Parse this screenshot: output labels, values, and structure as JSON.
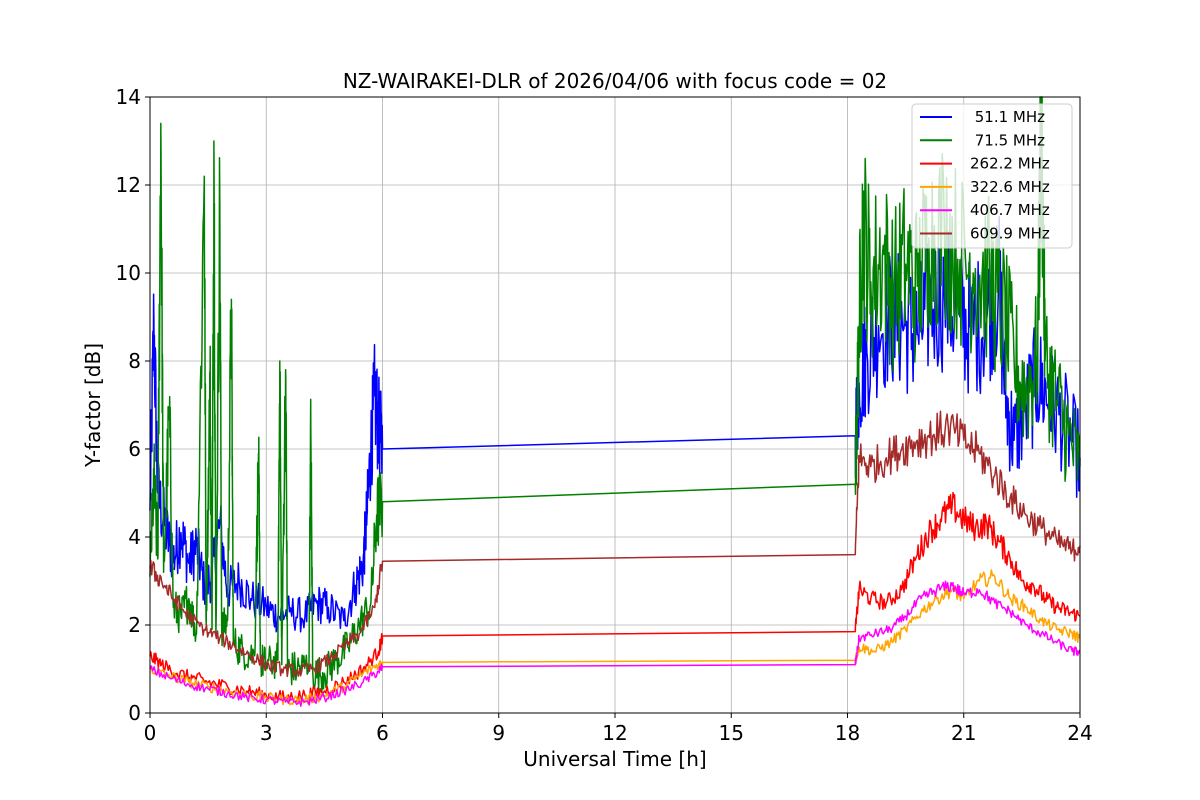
{
  "chart_data": {
    "type": "line",
    "title": "NZ-WAIRAKEI-DLR of 2026/04/06 with focus code = 02",
    "xlabel": "Universal Time [h]",
    "ylabel": "Y-factor [dB]",
    "xlim": [
      0,
      24
    ],
    "ylim": [
      0,
      14
    ],
    "xticks": [
      0,
      3,
      6,
      9,
      12,
      15,
      18,
      21,
      24
    ],
    "yticks": [
      0,
      2,
      4,
      6,
      8,
      10,
      12,
      14
    ],
    "grid": true,
    "legend_position": "top-right",
    "data_gap": [
      6.0,
      18.2
    ],
    "series": [
      {
        "name": " 51.1 MHz",
        "color": "#0000ff",
        "points": [
          [
            0.0,
            4.6
          ],
          [
            0.1,
            8.9
          ],
          [
            0.2,
            5.0
          ],
          [
            0.4,
            4.2
          ],
          [
            0.6,
            3.5
          ],
          [
            0.8,
            4.1
          ],
          [
            1.0,
            3.4
          ],
          [
            1.2,
            3.8
          ],
          [
            1.4,
            2.9
          ],
          [
            1.6,
            3.1
          ],
          [
            1.8,
            4.3
          ],
          [
            2.0,
            2.8
          ],
          [
            2.3,
            3.0
          ],
          [
            2.6,
            2.6
          ],
          [
            3.0,
            2.4
          ],
          [
            3.3,
            2.2
          ],
          [
            3.6,
            2.3
          ],
          [
            4.0,
            2.2
          ],
          [
            4.3,
            2.5
          ],
          [
            4.6,
            2.4
          ],
          [
            5.0,
            2.1
          ],
          [
            5.3,
            2.9
          ],
          [
            5.5,
            3.4
          ],
          [
            5.6,
            4.5
          ],
          [
            5.7,
            6.0
          ],
          [
            5.8,
            7.2
          ],
          [
            5.9,
            6.5
          ],
          [
            6.0,
            6.0
          ],
          [
            18.2,
            6.3
          ],
          [
            18.3,
            7.5
          ],
          [
            18.5,
            8.2
          ],
          [
            18.8,
            8.8
          ],
          [
            19.2,
            9.0
          ],
          [
            19.5,
            8.8
          ],
          [
            19.8,
            8.6
          ],
          [
            20.1,
            9.2
          ],
          [
            20.5,
            9.5
          ],
          [
            20.9,
            9.0
          ],
          [
            21.2,
            8.7
          ],
          [
            21.6,
            9.0
          ],
          [
            21.9,
            9.8
          ],
          [
            22.1,
            7.0
          ],
          [
            22.3,
            6.2
          ],
          [
            22.6,
            6.9
          ],
          [
            22.9,
            7.6
          ],
          [
            23.2,
            7.1
          ],
          [
            23.6,
            6.6
          ],
          [
            24.0,
            5.8
          ]
        ]
      },
      {
        "name": " 71.5 MHz",
        "color": "#008000",
        "points": [
          [
            0.0,
            3.1
          ],
          [
            0.1,
            5.3
          ],
          [
            0.2,
            3.5
          ],
          [
            0.28,
            13.4
          ],
          [
            0.35,
            3.2
          ],
          [
            0.5,
            6.8
          ],
          [
            0.6,
            2.4
          ],
          [
            0.8,
            2.2
          ],
          [
            1.0,
            2.6
          ],
          [
            1.2,
            1.8
          ],
          [
            1.4,
            12.2
          ],
          [
            1.45,
            2.0
          ],
          [
            1.55,
            7.6
          ],
          [
            1.6,
            1.9
          ],
          [
            1.65,
            13.0
          ],
          [
            1.7,
            1.8
          ],
          [
            1.8,
            11.6
          ],
          [
            1.85,
            1.9
          ],
          [
            2.0,
            2.1
          ],
          [
            2.1,
            9.4
          ],
          [
            2.15,
            1.6
          ],
          [
            2.4,
            1.4
          ],
          [
            2.7,
            1.3
          ],
          [
            2.8,
            5.9
          ],
          [
            2.85,
            1.2
          ],
          [
            3.0,
            1.1
          ],
          [
            3.3,
            1.2
          ],
          [
            3.35,
            8.0
          ],
          [
            3.4,
            1.1
          ],
          [
            3.5,
            7.8
          ],
          [
            3.55,
            1.0
          ],
          [
            3.8,
            1.0
          ],
          [
            4.1,
            1.1
          ],
          [
            4.15,
            6.5
          ],
          [
            4.2,
            0.9
          ],
          [
            4.5,
            0.9
          ],
          [
            4.8,
            1.2
          ],
          [
            5.1,
            1.5
          ],
          [
            5.4,
            2.0
          ],
          [
            5.7,
            2.5
          ],
          [
            5.85,
            4.5
          ],
          [
            6.0,
            4.8
          ],
          [
            18.2,
            5.2
          ],
          [
            18.3,
            8.8
          ],
          [
            18.4,
            11.2
          ],
          [
            18.6,
            9.8
          ],
          [
            18.9,
            10.4
          ],
          [
            19.2,
            9.6
          ],
          [
            19.5,
            10.2
          ],
          [
            19.8,
            9.7
          ],
          [
            20.1,
            10.8
          ],
          [
            20.5,
            11.0
          ],
          [
            20.9,
            10.3
          ],
          [
            21.3,
            10.1
          ],
          [
            21.7,
            9.8
          ],
          [
            22.0,
            9.1
          ],
          [
            22.3,
            8.0
          ],
          [
            22.6,
            7.3
          ],
          [
            22.9,
            8.1
          ],
          [
            23.0,
            13.8
          ],
          [
            23.1,
            8.0
          ],
          [
            23.4,
            7.1
          ],
          [
            23.7,
            6.3
          ],
          [
            24.0,
            5.6
          ]
        ]
      },
      {
        "name": "262.2 MHz",
        "color": "#ff0000",
        "points": [
          [
            0.0,
            1.3
          ],
          [
            0.3,
            1.1
          ],
          [
            0.7,
            0.9
          ],
          [
            1.1,
            0.8
          ],
          [
            1.5,
            0.7
          ],
          [
            2.0,
            0.6
          ],
          [
            2.5,
            0.5
          ],
          [
            3.0,
            0.4
          ],
          [
            3.5,
            0.35
          ],
          [
            4.0,
            0.4
          ],
          [
            4.5,
            0.5
          ],
          [
            5.0,
            0.7
          ],
          [
            5.5,
            1.0
          ],
          [
            5.9,
            1.4
          ],
          [
            6.0,
            1.75
          ],
          [
            18.2,
            1.85
          ],
          [
            18.3,
            2.8
          ],
          [
            18.6,
            2.6
          ],
          [
            19.0,
            2.5
          ],
          [
            19.4,
            2.8
          ],
          [
            19.8,
            3.6
          ],
          [
            20.1,
            4.1
          ],
          [
            20.4,
            4.4
          ],
          [
            20.7,
            4.7
          ],
          [
            21.0,
            4.4
          ],
          [
            21.3,
            4.2
          ],
          [
            21.6,
            4.3
          ],
          [
            21.9,
            3.9
          ],
          [
            22.2,
            3.5
          ],
          [
            22.5,
            3.0
          ],
          [
            22.8,
            2.9
          ],
          [
            23.1,
            2.6
          ],
          [
            23.4,
            2.4
          ],
          [
            23.7,
            2.3
          ],
          [
            24.0,
            2.2
          ]
        ]
      },
      {
        "name": "322.6 MHz",
        "color": "#ffa500",
        "points": [
          [
            0.0,
            1.0
          ],
          [
            0.5,
            0.85
          ],
          [
            1.0,
            0.7
          ],
          [
            1.5,
            0.6
          ],
          [
            2.0,
            0.5
          ],
          [
            2.5,
            0.4
          ],
          [
            3.0,
            0.35
          ],
          [
            3.5,
            0.3
          ],
          [
            4.0,
            0.3
          ],
          [
            4.5,
            0.4
          ],
          [
            5.0,
            0.6
          ],
          [
            5.5,
            0.9
          ],
          [
            5.9,
            1.1
          ],
          [
            6.0,
            1.15
          ],
          [
            18.2,
            1.2
          ],
          [
            18.3,
            1.5
          ],
          [
            18.7,
            1.4
          ],
          [
            19.1,
            1.6
          ],
          [
            19.5,
            1.9
          ],
          [
            19.9,
            2.3
          ],
          [
            20.3,
            2.6
          ],
          [
            20.7,
            2.8
          ],
          [
            21.0,
            2.6
          ],
          [
            21.4,
            3.0
          ],
          [
            21.8,
            3.1
          ],
          [
            22.2,
            2.6
          ],
          [
            22.6,
            2.4
          ],
          [
            23.0,
            2.1
          ],
          [
            23.4,
            1.9
          ],
          [
            23.8,
            1.8
          ],
          [
            24.0,
            1.7
          ]
        ]
      },
      {
        "name": "406.7 MHz",
        "color": "#ff00ff",
        "points": [
          [
            0.0,
            1.0
          ],
          [
            0.5,
            0.8
          ],
          [
            1.0,
            0.65
          ],
          [
            1.5,
            0.55
          ],
          [
            2.0,
            0.45
          ],
          [
            2.5,
            0.35
          ],
          [
            3.0,
            0.3
          ],
          [
            3.5,
            0.25
          ],
          [
            4.0,
            0.25
          ],
          [
            4.5,
            0.35
          ],
          [
            5.0,
            0.5
          ],
          [
            5.5,
            0.7
          ],
          [
            5.9,
            0.95
          ],
          [
            6.0,
            1.05
          ],
          [
            18.2,
            1.1
          ],
          [
            18.3,
            1.7
          ],
          [
            18.7,
            1.8
          ],
          [
            19.1,
            1.9
          ],
          [
            19.5,
            2.2
          ],
          [
            19.9,
            2.6
          ],
          [
            20.3,
            2.8
          ],
          [
            20.7,
            2.9
          ],
          [
            21.0,
            2.7
          ],
          [
            21.4,
            2.8
          ],
          [
            21.8,
            2.5
          ],
          [
            22.2,
            2.3
          ],
          [
            22.6,
            2.0
          ],
          [
            23.0,
            1.8
          ],
          [
            23.4,
            1.6
          ],
          [
            23.8,
            1.4
          ],
          [
            24.0,
            1.4
          ]
        ]
      },
      {
        "name": "609.9 MHz",
        "color": "#a52a2a",
        "points": [
          [
            0.0,
            3.3
          ],
          [
            0.3,
            3.0
          ],
          [
            0.6,
            2.6
          ],
          [
            1.0,
            2.2
          ],
          [
            1.4,
            1.9
          ],
          [
            1.8,
            1.7
          ],
          [
            2.2,
            1.5
          ],
          [
            2.6,
            1.3
          ],
          [
            3.0,
            1.1
          ],
          [
            3.4,
            1.0
          ],
          [
            3.8,
            0.95
          ],
          [
            4.2,
            1.0
          ],
          [
            4.6,
            1.2
          ],
          [
            5.0,
            1.5
          ],
          [
            5.4,
            1.8
          ],
          [
            5.8,
            2.4
          ],
          [
            6.0,
            3.45
          ],
          [
            18.2,
            3.6
          ],
          [
            18.3,
            5.8
          ],
          [
            18.6,
            5.6
          ],
          [
            19.0,
            5.8
          ],
          [
            19.4,
            6.0
          ],
          [
            19.8,
            6.2
          ],
          [
            20.2,
            6.3
          ],
          [
            20.6,
            6.5
          ],
          [
            21.0,
            6.2
          ],
          [
            21.4,
            5.9
          ],
          [
            21.8,
            5.4
          ],
          [
            22.2,
            4.9
          ],
          [
            22.6,
            4.5
          ],
          [
            23.0,
            4.2
          ],
          [
            23.4,
            3.9
          ],
          [
            23.8,
            3.7
          ],
          [
            24.0,
            3.8
          ]
        ]
      }
    ]
  }
}
